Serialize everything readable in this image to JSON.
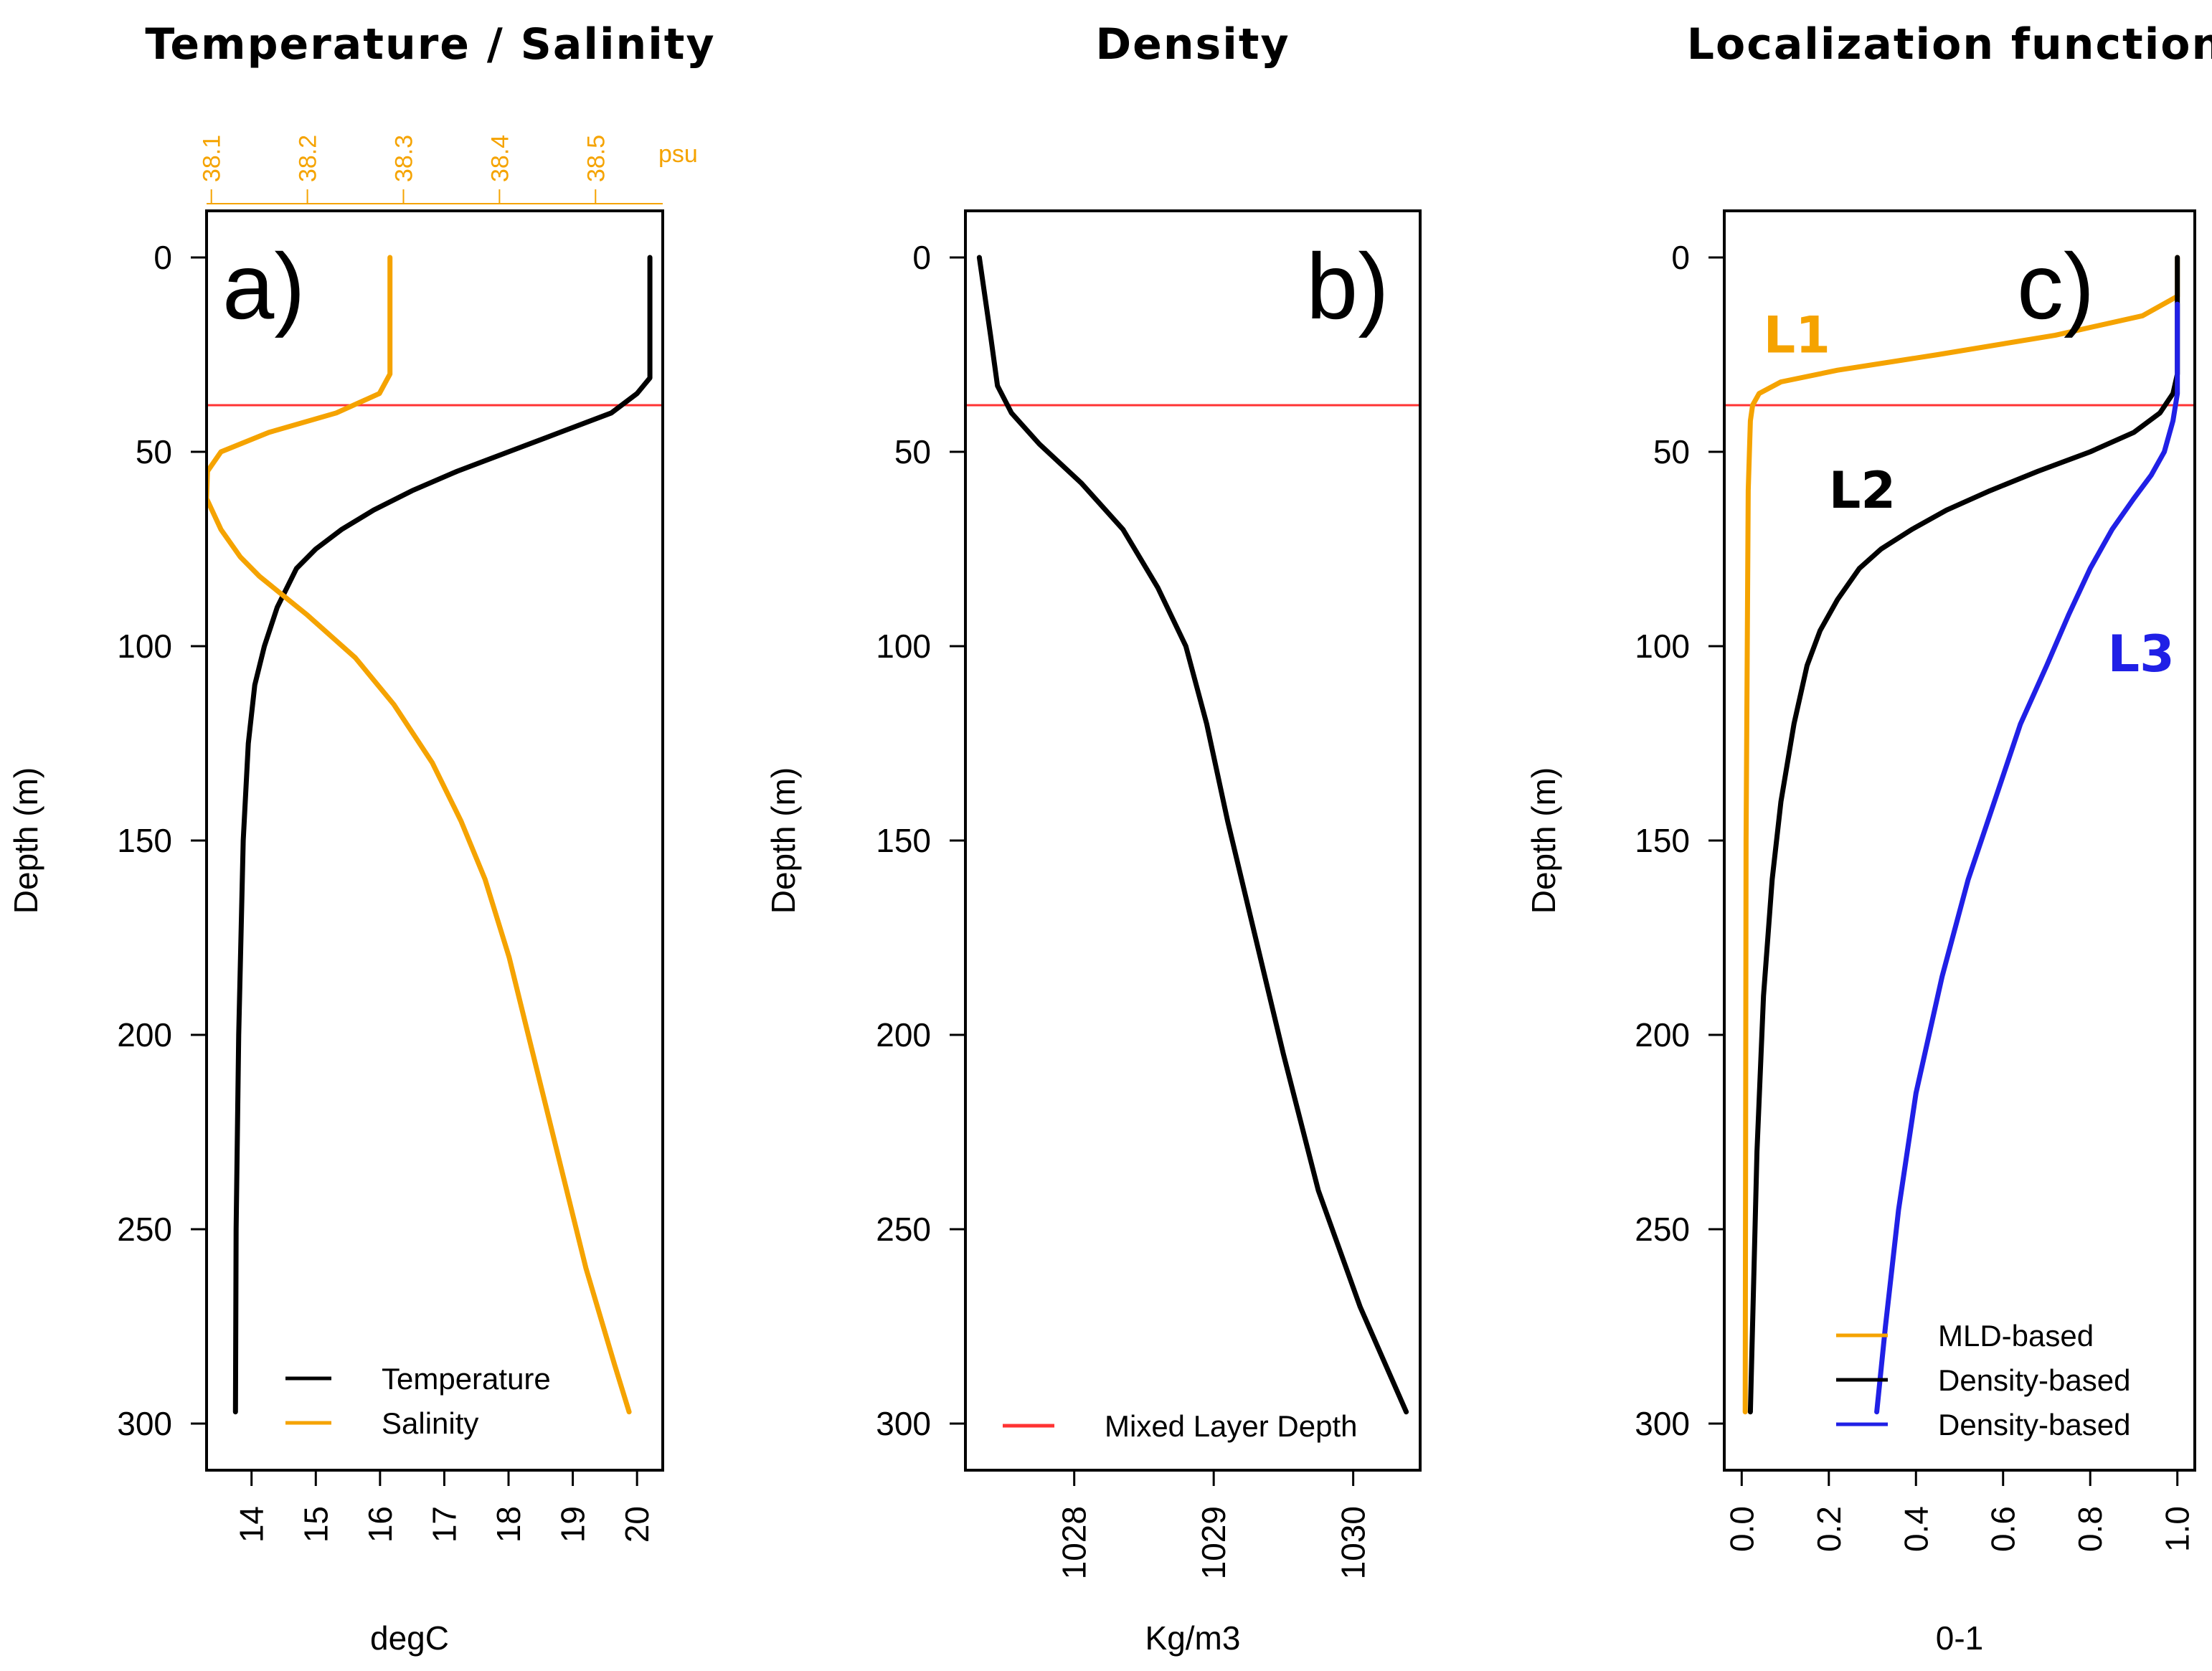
{
  "colors": {
    "temperature": "#000000",
    "salinity": "#f5a300",
    "mld": "#ff3333",
    "l1": "#f5a300",
    "l2": "#000000",
    "l3": "#2020e6"
  },
  "chart_data": [
    {
      "id": "a",
      "type": "line",
      "panel_tag": "a)",
      "title": "Temperature / Salinity",
      "ylabel": "Depth (m)",
      "xlabel": "degC",
      "top_axis_unit": "psu",
      "ylim": [
        312,
        -12
      ],
      "xlim": [
        13.3,
        20.4
      ],
      "top_xlim": [
        38.095,
        38.57
      ],
      "yticks": [
        0,
        50,
        100,
        150,
        200,
        250,
        300
      ],
      "ytick_labels": [
        "0",
        "50",
        "100",
        "150",
        "200",
        "250",
        "300"
      ],
      "xticks": [
        14,
        15,
        16,
        17,
        18,
        19,
        20
      ],
      "xtick_labels": [
        "14",
        "15",
        "16",
        "17",
        "18",
        "19",
        "20"
      ],
      "top_xticks": [
        38.1,
        38.2,
        38.3,
        38.4,
        38.5
      ],
      "top_xtick_labels": [
        "38.1",
        "38.2",
        "38.3",
        "38.4",
        "38.5"
      ],
      "mixed_layer_depth": 38,
      "legend": [
        {
          "label": "Temperature",
          "color": "#000000"
        },
        {
          "label": "Salinity",
          "color": "#f5a300"
        }
      ],
      "series": [
        {
          "name": "Temperature",
          "axis": "bottom",
          "points": [
            [
              20.2,
              0
            ],
            [
              20.2,
              20
            ],
            [
              20.2,
              31
            ],
            [
              20.0,
              35
            ],
            [
              19.6,
              40
            ],
            [
              18.8,
              45
            ],
            [
              18.0,
              50
            ],
            [
              17.2,
              55
            ],
            [
              16.5,
              60
            ],
            [
              15.9,
              65
            ],
            [
              15.4,
              70
            ],
            [
              15.0,
              75
            ],
            [
              14.7,
              80
            ],
            [
              14.4,
              90
            ],
            [
              14.2,
              100
            ],
            [
              14.05,
              110
            ],
            [
              13.95,
              125
            ],
            [
              13.87,
              150
            ],
            [
              13.8,
              200
            ],
            [
              13.76,
              250
            ],
            [
              13.75,
              297
            ]
          ]
        },
        {
          "name": "Salinity",
          "axis": "top",
          "points": [
            [
              38.286,
              0
            ],
            [
              38.286,
              30
            ],
            [
              38.275,
              35
            ],
            [
              38.23,
              40
            ],
            [
              38.16,
              45
            ],
            [
              38.11,
              50
            ],
            [
              38.096,
              55
            ],
            [
              38.095,
              62
            ],
            [
              38.11,
              70
            ],
            [
              38.13,
              77
            ],
            [
              38.15,
              82
            ],
            [
              38.2,
              92
            ],
            [
              38.25,
              103
            ],
            [
              38.29,
              115
            ],
            [
              38.33,
              130
            ],
            [
              38.36,
              145
            ],
            [
              38.385,
              160
            ],
            [
              38.41,
              180
            ],
            [
              38.43,
              200
            ],
            [
              38.46,
              230
            ],
            [
              38.49,
              260
            ],
            [
              38.52,
              285
            ],
            [
              38.535,
              297
            ]
          ]
        }
      ]
    },
    {
      "id": "b",
      "type": "line",
      "panel_tag": "b)",
      "title": "Density",
      "ylabel": "Depth (m)",
      "xlabel": "Kg/m3",
      "ylim": [
        312,
        -12
      ],
      "xlim": [
        1027.22,
        1030.48
      ],
      "yticks": [
        0,
        50,
        100,
        150,
        200,
        250,
        300
      ],
      "ytick_labels": [
        "0",
        "50",
        "100",
        "150",
        "200",
        "250",
        "300"
      ],
      "xticks": [
        1028,
        1029,
        1030
      ],
      "xtick_labels": [
        "1028",
        "1029",
        "1030"
      ],
      "mixed_layer_depth": 38,
      "legend": [
        {
          "label": "Mixed Layer Depth",
          "color": "#ff3333"
        }
      ],
      "series": [
        {
          "name": "Density",
          "points": [
            [
              1027.32,
              0
            ],
            [
              1027.4,
              20
            ],
            [
              1027.45,
              33
            ],
            [
              1027.55,
              40
            ],
            [
              1027.75,
              48
            ],
            [
              1028.05,
              58
            ],
            [
              1028.35,
              70
            ],
            [
              1028.6,
              85
            ],
            [
              1028.8,
              100
            ],
            [
              1028.95,
              120
            ],
            [
              1029.1,
              145
            ],
            [
              1029.3,
              175
            ],
            [
              1029.5,
              205
            ],
            [
              1029.75,
              240
            ],
            [
              1030.05,
              270
            ],
            [
              1030.38,
              297
            ]
          ]
        }
      ]
    },
    {
      "id": "c",
      "type": "line",
      "panel_tag": "c)",
      "title": "Localization function",
      "ylabel": "Depth (m)",
      "xlabel": "0-1",
      "ylim": [
        312,
        -12
      ],
      "xlim": [
        -0.04,
        1.04
      ],
      "yticks": [
        0,
        50,
        100,
        150,
        200,
        250,
        300
      ],
      "ytick_labels": [
        "0",
        "50",
        "100",
        "150",
        "200",
        "250",
        "300"
      ],
      "xticks": [
        0.0,
        0.2,
        0.4,
        0.6,
        0.8,
        1.0
      ],
      "xtick_labels": [
        "0.0",
        "0.2",
        "0.4",
        "0.6",
        "0.8",
        "1.0"
      ],
      "mixed_layer_depth": 38,
      "legend": [
        {
          "label": "MLD-based",
          "color": "#f5a300"
        },
        {
          "label": "Density-based",
          "color": "#000000"
        },
        {
          "label": "Density-based",
          "color": "#2020e6"
        }
      ],
      "curve_labels": [
        {
          "label": "L1",
          "color": "#f5a300",
          "x": 0.05,
          "depth": 20
        },
        {
          "label": "L2",
          "color": "#000000",
          "x": 0.2,
          "depth": 60
        },
        {
          "label": "L3",
          "color": "#2020e6",
          "x": 0.84,
          "depth": 102
        }
      ],
      "series": [
        {
          "name": "L1",
          "color": "#f5a300",
          "points": [
            [
              1.0,
              0
            ],
            [
              1.0,
              10
            ],
            [
              0.92,
              15
            ],
            [
              0.72,
              20
            ],
            [
              0.45,
              25
            ],
            [
              0.22,
              29
            ],
            [
              0.09,
              32
            ],
            [
              0.04,
              35
            ],
            [
              0.025,
              38
            ],
            [
              0.02,
              42
            ],
            [
              0.015,
              60
            ],
            [
              0.01,
              150
            ],
            [
              0.008,
              297
            ]
          ]
        },
        {
          "name": "L2",
          "color": "#000000",
          "points": [
            [
              1.0,
              0
            ],
            [
              1.0,
              30
            ],
            [
              0.99,
              35
            ],
            [
              0.96,
              40
            ],
            [
              0.9,
              45
            ],
            [
              0.8,
              50
            ],
            [
              0.68,
              55
            ],
            [
              0.57,
              60
            ],
            [
              0.47,
              65
            ],
            [
              0.39,
              70
            ],
            [
              0.32,
              75
            ],
            [
              0.27,
              80
            ],
            [
              0.22,
              88
            ],
            [
              0.18,
              96
            ],
            [
              0.15,
              105
            ],
            [
              0.12,
              120
            ],
            [
              0.09,
              140
            ],
            [
              0.07,
              160
            ],
            [
              0.05,
              190
            ],
            [
              0.035,
              230
            ],
            [
              0.02,
              297
            ]
          ]
        },
        {
          "name": "L3",
          "color": "#2020e6",
          "points": [
            [
              1.0,
              12
            ],
            [
              1.0,
              35
            ],
            [
              0.99,
              42
            ],
            [
              0.97,
              50
            ],
            [
              0.94,
              56
            ],
            [
              0.9,
              62
            ],
            [
              0.85,
              70
            ],
            [
              0.8,
              80
            ],
            [
              0.75,
              92
            ],
            [
              0.7,
              105
            ],
            [
              0.64,
              120
            ],
            [
              0.58,
              140
            ],
            [
              0.52,
              160
            ],
            [
              0.46,
              185
            ],
            [
              0.4,
              215
            ],
            [
              0.36,
              245
            ],
            [
              0.33,
              275
            ],
            [
              0.31,
              297
            ]
          ]
        }
      ]
    }
  ]
}
